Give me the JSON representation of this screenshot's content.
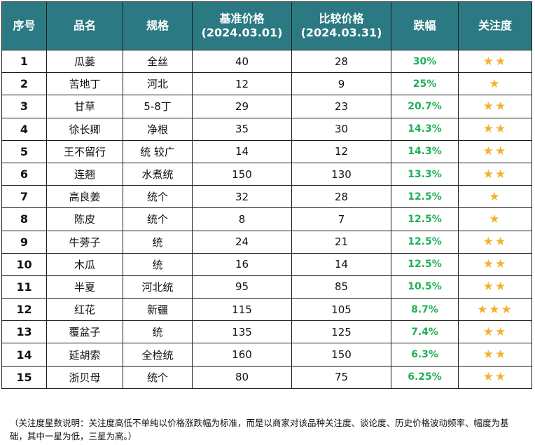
{
  "table": {
    "headers": {
      "idx": "序号",
      "name": "品名",
      "spec": "规格",
      "base_price": "基准价格",
      "base_date": "(2024.03.01)",
      "cmp_price": "比较价格",
      "cmp_date": "(2024.03.31)",
      "drop": "跌幅",
      "attention": "关注度"
    },
    "rows": [
      {
        "idx": "1",
        "name": "瓜蒌",
        "spec": "全丝",
        "base": "40",
        "cmp": "28",
        "drop": "30%",
        "stars": "★★"
      },
      {
        "idx": "2",
        "name": "苦地丁",
        "spec": "河北",
        "base": "12",
        "cmp": "9",
        "drop": "25%",
        "stars": "★"
      },
      {
        "idx": "3",
        "name": "甘草",
        "spec": "5-8丁",
        "base": "29",
        "cmp": "23",
        "drop": "20.7%",
        "stars": "★★"
      },
      {
        "idx": "4",
        "name": "徐长卿",
        "spec": "净根",
        "base": "35",
        "cmp": "30",
        "drop": "14.3%",
        "stars": "★★"
      },
      {
        "idx": "5",
        "name": "王不留行",
        "spec": "统 较广",
        "base": "14",
        "cmp": "12",
        "drop": "14.3%",
        "stars": "★★"
      },
      {
        "idx": "6",
        "name": "连翘",
        "spec": "水煮统",
        "base": "150",
        "cmp": "130",
        "drop": "13.3%",
        "stars": "★★"
      },
      {
        "idx": "7",
        "name": "高良姜",
        "spec": "统个",
        "base": "32",
        "cmp": "28",
        "drop": "12.5%",
        "stars": "★"
      },
      {
        "idx": "8",
        "name": "陈皮",
        "spec": "统个",
        "base": "8",
        "cmp": "7",
        "drop": "12.5%",
        "stars": "★"
      },
      {
        "idx": "9",
        "name": "牛蒡子",
        "spec": "统",
        "base": "24",
        "cmp": "21",
        "drop": "12.5%",
        "stars": "★★"
      },
      {
        "idx": "10",
        "name": "木瓜",
        "spec": "统",
        "base": "16",
        "cmp": "14",
        "drop": "12.5%",
        "stars": "★★"
      },
      {
        "idx": "11",
        "name": "半夏",
        "spec": "河北统",
        "base": "95",
        "cmp": "85",
        "drop": "10.5%",
        "stars": "★★"
      },
      {
        "idx": "12",
        "name": "红花",
        "spec": "新疆",
        "base": "115",
        "cmp": "105",
        "drop": "8.7%",
        "stars": "★★★"
      },
      {
        "idx": "13",
        "name": "覆盆子",
        "spec": "统",
        "base": "135",
        "cmp": "125",
        "drop": "7.4%",
        "stars": "★★"
      },
      {
        "idx": "14",
        "name": "延胡索",
        "spec": "全检统",
        "base": "160",
        "cmp": "150",
        "drop": "6.3%",
        "stars": "★★"
      },
      {
        "idx": "15",
        "name": "浙贝母",
        "spec": "统个",
        "base": "80",
        "cmp": "75",
        "drop": "6.25%",
        "stars": "★★"
      }
    ]
  },
  "note": "（关注度星数说明：关注度高低不单纯以价格涨跌幅为标准，而是以商家对该品种关注度、谈论度、历史价格波动频率、幅度为基础，其中一星为低，三星为高。）",
  "colors": {
    "header_bg": "#2b7a83",
    "drop_text": "#1fb157",
    "star": "#f4b12f"
  }
}
